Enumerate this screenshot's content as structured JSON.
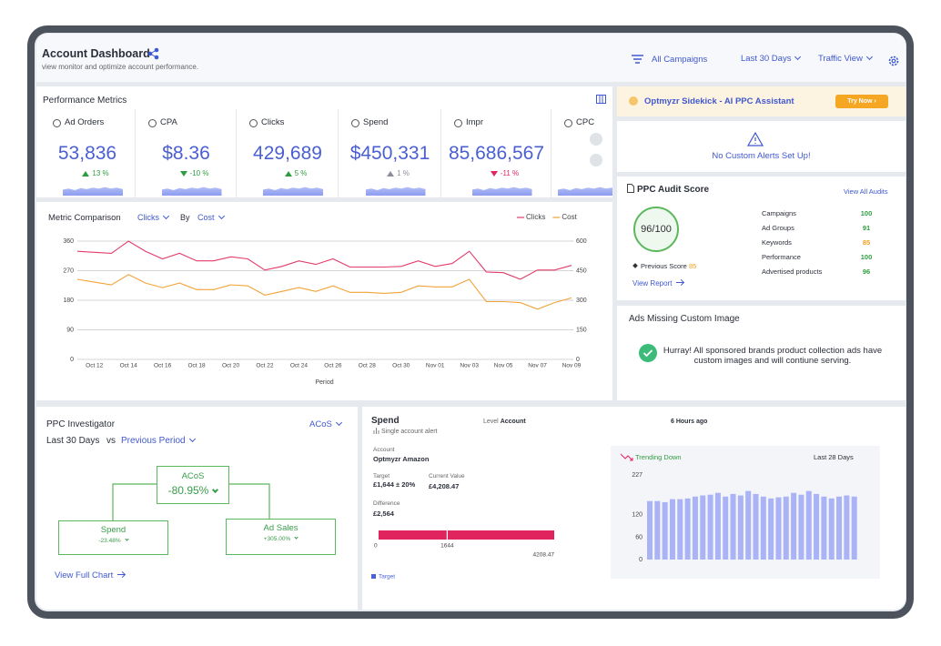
{
  "header": {
    "title": "Account Dashboard",
    "subtitle": "view monitor and optimize account performance.",
    "campaigns": "All Campaigns",
    "date_range": "Last 30 Days",
    "view": "Traffic View"
  },
  "performance_metrics": {
    "title": "Performance Metrics",
    "cards": [
      {
        "label": "Ad Orders",
        "value": "53,836",
        "change": "13 %",
        "direction": "up",
        "color": "#2e9d3f"
      },
      {
        "label": "CPA",
        "value": "$8.36",
        "change": "-10 %",
        "direction": "down",
        "color": "#2e9d3f"
      },
      {
        "label": "Clicks",
        "value": "429,689",
        "change": "5 %",
        "direction": "up",
        "color": "#2e9d3f"
      },
      {
        "label": "Spend",
        "value": "$450,331",
        "change": "1 %",
        "direction": "up",
        "color": "#8a8f98"
      },
      {
        "label": "Impr",
        "value": "85,686,567",
        "change": "-11 %",
        "direction": "down",
        "color": "#e0245e"
      },
      {
        "label": "CPC"
      }
    ]
  },
  "sidekick": {
    "title": "Optmyzr Sidekick - AI PPC Assistant",
    "button": "Try Now ›"
  },
  "alerts": {
    "message": "No Custom Alerts Set Up!"
  },
  "audit": {
    "title": "PPC Audit Score",
    "link": "View All Audits",
    "score": "96/100",
    "previous_label": "Previous Score",
    "previous_score": "85",
    "report_link": "View Report",
    "rows": [
      {
        "label": "Campaigns",
        "value": "100",
        "color": "#2e9d3f"
      },
      {
        "label": "Ad Groups",
        "value": "91",
        "color": "#2e9d3f"
      },
      {
        "label": "Keywords",
        "value": "85",
        "color": "#f0a020"
      },
      {
        "label": "Performance",
        "value": "100",
        "color": "#2e9d3f"
      },
      {
        "label": "Advertised products",
        "value": "96",
        "color": "#2e9d3f"
      }
    ]
  },
  "missing_image": {
    "title": "Ads Missing Custom Image",
    "message": "Hurray! All sponsored brands product collection ads have custom images and will contiune serving."
  },
  "investigator": {
    "title": "PPC Investigator",
    "metric": "ACoS",
    "period": "Last 30 Days",
    "vs": "vs",
    "comparison": "Previous Period",
    "root": {
      "label": "ACoS",
      "value": "-80.95%"
    },
    "children": [
      {
        "label": "Spend",
        "value": "-23.48%"
      },
      {
        "label": "Ad Sales",
        "value": "+305.00%"
      }
    ],
    "link": "View Full Chart"
  },
  "spend_alert": {
    "title": "Spend",
    "subtitle": "Single account alert",
    "level_label": "Level",
    "level": "Account",
    "time": "6 Hours ago",
    "account_label": "Account",
    "account": "Optmyzr Amazon",
    "target_label": "Target",
    "target": "£1,644 ± 20%",
    "current_label": "Current Value",
    "current": "£4,208.47",
    "difference_label": "Difference",
    "difference": "£2,564"
  },
  "chart_data": [
    {
      "type": "line",
      "title": "Metric Comparison",
      "primary_metric": "Clicks",
      "by": "By",
      "secondary_metric": "Cost",
      "xlabel": "Period",
      "categories": [
        null,
        "Oct 12",
        null,
        "Oct 14",
        null,
        "Oct 16",
        null,
        "Oct 18",
        null,
        "Oct 20",
        null,
        "Oct 22",
        null,
        "Oct 24",
        null,
        "Oct 26",
        null,
        "Oct 28",
        null,
        "Oct 30",
        null,
        "Nov 01",
        null,
        "Nov 03",
        null,
        "Nov 05",
        null,
        "Nov 07",
        null,
        "Nov 09"
      ],
      "series": [
        {
          "name": "Clicks",
          "color": "#e33c6a",
          "values": [
            329,
            326,
            323,
            360,
            329,
            306,
            323,
            300,
            300,
            312,
            306,
            272,
            283,
            300,
            289,
            306,
            281,
            281,
            281,
            283,
            300,
            283,
            292,
            329,
            266,
            264,
            244,
            272,
            272,
            286
          ]
        },
        {
          "name": "Cost",
          "color": "#f2a33a",
          "axis": "y2",
          "values": [
            406,
            392,
            378,
            430,
            387,
            364,
            387,
            354,
            354,
            378,
            373,
            326,
            345,
            364,
            345,
            373,
            340,
            340,
            335,
            340,
            373,
            368,
            368,
            406,
            293,
            293,
            288,
            255,
            288,
            312
          ]
        }
      ],
      "ylim": [
        0,
        360
      ],
      "yticks": [
        0,
        90,
        180,
        270,
        360
      ],
      "y2lim": [
        0,
        600
      ],
      "y2ticks": [
        0,
        150,
        300,
        450,
        600
      ],
      "grid": true
    },
    {
      "type": "bar",
      "title": "Trending Down",
      "subtitle": "Last 28 Days",
      "color": "#a9b3f6",
      "values": [
        157,
        157,
        154,
        162,
        162,
        164,
        169,
        172,
        174,
        179,
        169,
        176,
        172,
        184,
        176,
        169,
        164,
        167,
        169,
        179,
        174,
        184,
        176,
        169,
        164,
        169,
        172,
        169
      ],
      "ylim": [
        0,
        227
      ],
      "yticks": [
        0,
        60,
        120,
        227
      ],
      "grid": false
    },
    {
      "type": "bullet",
      "value": 4208.47,
      "target": 1644,
      "xlim": [
        0,
        4208.47
      ],
      "xticks": [
        0,
        1644,
        4208.47
      ],
      "color": "#e0245e",
      "target_color": "#ffffff",
      "legend": "Target",
      "legend_color": "#4a62d8"
    }
  ]
}
